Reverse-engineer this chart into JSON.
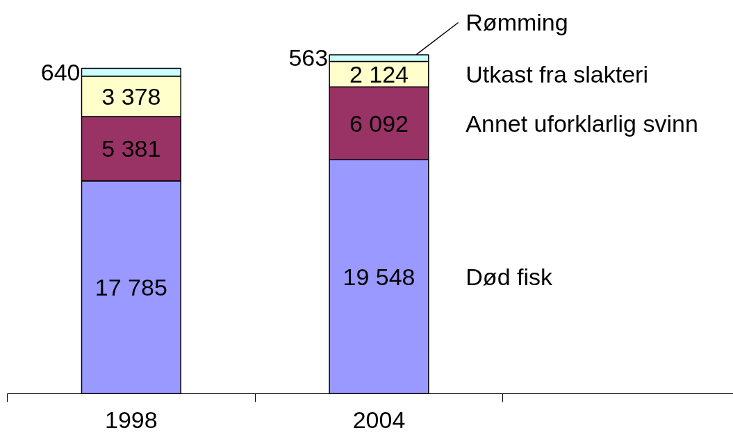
{
  "chart_data": {
    "type": "bar",
    "stacked": true,
    "categories": [
      "1998",
      "2004"
    ],
    "series": [
      {
        "name": "Død fisk",
        "color": "#9999ff",
        "values": [
          17785,
          19548
        ],
        "value_labels": [
          "17 785",
          "19 548"
        ]
      },
      {
        "name": "Annet uforklarlig svinn",
        "color": "#993366",
        "values": [
          5381,
          6092
        ],
        "value_labels": [
          "5 381",
          "6 092"
        ]
      },
      {
        "name": "Utkast fra slakteri",
        "color": "#ffffcc",
        "values": [
          3378,
          2124
        ],
        "value_labels": [
          "3 378",
          "2 124"
        ]
      },
      {
        "name": "Rømming",
        "color": "#ccffff",
        "values": [
          640,
          563
        ],
        "value_labels": [
          "640",
          "563"
        ]
      }
    ]
  }
}
